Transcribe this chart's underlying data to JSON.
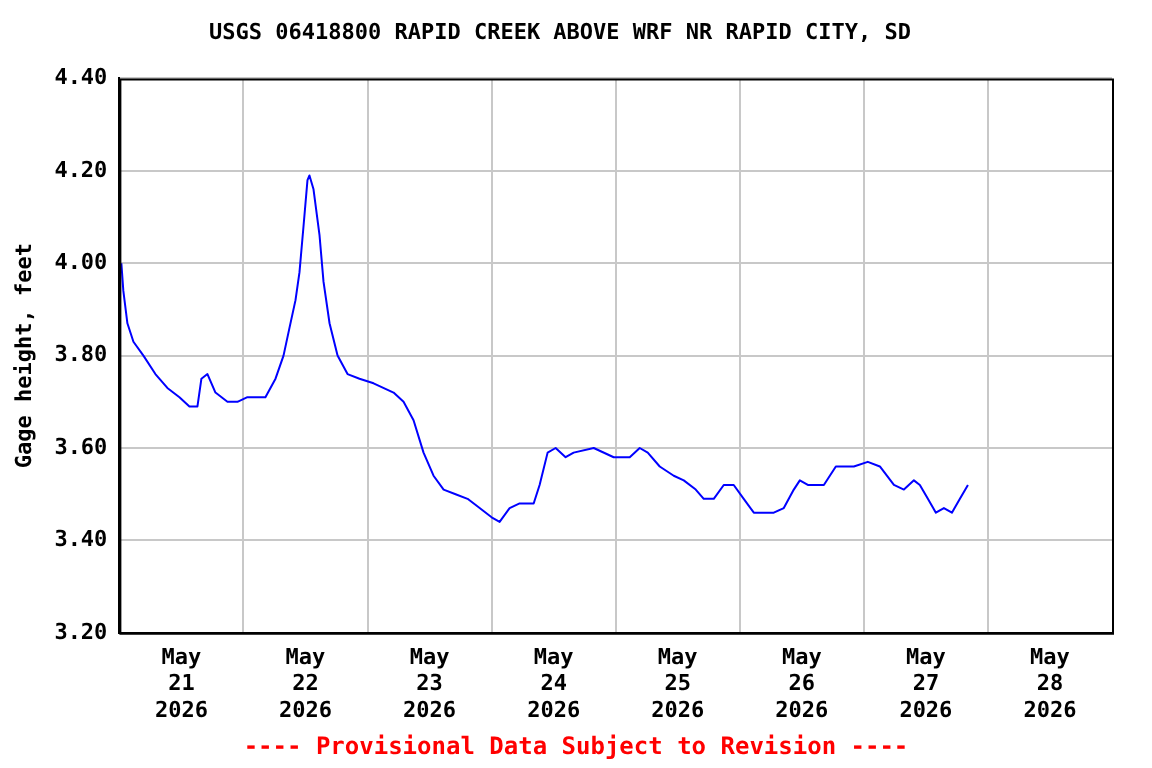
{
  "chart_data": {
    "type": "line",
    "title": "USGS 06418800 RAPID CREEK ABOVE WRF NR RAPID CITY, SD",
    "ylabel": "Gage height, feet",
    "annotations": [
      "---- Provisional Data Subject to Revision ----"
    ],
    "x": [
      "2026-05-21T00:23",
      "2026-05-21T00:46",
      "2026-05-21T01:33",
      "2026-05-21T02:43",
      "2026-05-21T04:39",
      "2026-05-21T06:58",
      "2026-05-21T09:17",
      "2026-05-21T11:37",
      "2026-05-21T13:33",
      "2026-05-21T15:06",
      "2026-05-21T15:52",
      "2026-05-21T17:02",
      "2026-05-21T18:35",
      "2026-05-21T20:54",
      "2026-05-21T22:50",
      "2026-05-22T00:46",
      "2026-05-22T04:15",
      "2026-05-22T06:12",
      "2026-05-22T07:45",
      "2026-05-22T08:54",
      "2026-05-22T10:04",
      "2026-05-22T10:50",
      "2026-05-22T11:37",
      "2026-05-22T12:23",
      "2026-05-22T12:46",
      "2026-05-22T13:33",
      "2026-05-22T14:43",
      "2026-05-22T15:29",
      "2026-05-22T16:39",
      "2026-05-22T18:12",
      "2026-05-22T20:08",
      "2026-05-22T22:27",
      "2026-05-23T01:10",
      "2026-05-23T05:02",
      "2026-05-23T06:58",
      "2026-05-23T08:54",
      "2026-05-23T10:50",
      "2026-05-23T12:46",
      "2026-05-23T14:43",
      "2026-05-23T17:02",
      "2026-05-23T19:21",
      "2026-05-23T21:41",
      "2026-05-24T00:00",
      "2026-05-24T01:33",
      "2026-05-24T03:29",
      "2026-05-24T05:25",
      "2026-05-24T08:08",
      "2026-05-24T09:17",
      "2026-05-24T10:50",
      "2026-05-24T12:23",
      "2026-05-24T14:19",
      "2026-05-24T15:52",
      "2026-05-24T19:45",
      "2026-05-24T23:37",
      "2026-05-25T02:43",
      "2026-05-25T04:39",
      "2026-05-25T06:12",
      "2026-05-25T08:31",
      "2026-05-25T11:14",
      "2026-05-25T13:10",
      "2026-05-25T15:29",
      "2026-05-25T17:02",
      "2026-05-25T18:58",
      "2026-05-25T20:54",
      "2026-05-25T22:50",
      "2026-05-26T00:46",
      "2026-05-26T02:43",
      "2026-05-26T06:35",
      "2026-05-26T08:31",
      "2026-05-26T10:27",
      "2026-05-26T11:37",
      "2026-05-26T13:10",
      "2026-05-26T16:16",
      "2026-05-26T18:35",
      "2026-05-26T22:04",
      "2026-05-27T00:46",
      "2026-05-27T03:06",
      "2026-05-27T05:49",
      "2026-05-27T07:45",
      "2026-05-27T09:41",
      "2026-05-27T10:50",
      "2026-05-27T12:23",
      "2026-05-27T13:56",
      "2026-05-27T15:29",
      "2026-05-27T17:02",
      "2026-05-27T18:35",
      "2026-05-27T20:08"
    ],
    "series": [
      {
        "color": "#0000ff",
        "values": [
          4.0,
          3.94,
          3.87,
          3.83,
          3.8,
          3.76,
          3.73,
          3.71,
          3.69,
          3.69,
          3.75,
          3.76,
          3.72,
          3.7,
          3.7,
          3.71,
          3.71,
          3.75,
          3.8,
          3.86,
          3.92,
          3.98,
          4.08,
          4.18,
          4.19,
          4.16,
          4.06,
          3.96,
          3.87,
          3.8,
          3.76,
          3.75,
          3.74,
          3.72,
          3.7,
          3.66,
          3.59,
          3.54,
          3.51,
          3.5,
          3.49,
          3.47,
          3.45,
          3.44,
          3.47,
          3.48,
          3.48,
          3.52,
          3.59,
          3.6,
          3.58,
          3.59,
          3.6,
          3.58,
          3.58,
          3.6,
          3.59,
          3.56,
          3.54,
          3.53,
          3.51,
          3.49,
          3.49,
          3.52,
          3.52,
          3.49,
          3.46,
          3.46,
          3.47,
          3.51,
          3.53,
          3.52,
          3.52,
          3.56,
          3.56,
          3.57,
          3.56,
          3.52,
          3.51,
          3.53,
          3.52,
          3.49,
          3.46,
          3.47,
          3.46,
          3.49,
          3.52
        ]
      }
    ],
    "xlim": [
      "2026-05-21T00:00",
      "2026-05-29T00:00"
    ],
    "xticks": [
      {
        "value": "2026-05-21T12:00",
        "label": "May\n21\n2026"
      },
      {
        "value": "2026-05-22T00:00",
        "label": null
      },
      {
        "value": "2026-05-22T12:00",
        "label": "May\n22\n2026"
      },
      {
        "value": "2026-05-23T00:00",
        "label": null
      },
      {
        "value": "2026-05-23T12:00",
        "label": "May\n23\n2026"
      },
      {
        "value": "2026-05-24T00:00",
        "label": null
      },
      {
        "value": "2026-05-24T12:00",
        "label": "May\n24\n2026"
      },
      {
        "value": "2026-05-25T00:00",
        "label": null
      },
      {
        "value": "2026-05-25T12:00",
        "label": "May\n25\n2026"
      },
      {
        "value": "2026-05-26T00:00",
        "label": null
      },
      {
        "value": "2026-05-26T12:00",
        "label": "May\n26\n2026"
      },
      {
        "value": "2026-05-27T00:00",
        "label": null
      },
      {
        "value": "2026-05-27T12:00",
        "label": "May\n27\n2026"
      },
      {
        "value": "2026-05-28T00:00",
        "label": null
      },
      {
        "value": "2026-05-28T12:00",
        "label": "May\n28\n2026"
      }
    ],
    "ylim": [
      3.2,
      4.4
    ],
    "yticks": [
      {
        "value": 3.2,
        "label": "3.20"
      },
      {
        "value": 3.4,
        "label": "3.40"
      },
      {
        "value": 3.6,
        "label": "3.60"
      },
      {
        "value": 3.8,
        "label": "3.80"
      },
      {
        "value": 4.0,
        "label": "4.00"
      },
      {
        "value": 4.2,
        "label": "4.20"
      },
      {
        "value": 4.4,
        "label": "4.40"
      }
    ],
    "grid": true,
    "legend": false,
    "marker": "none",
    "line_style": "solid"
  }
}
